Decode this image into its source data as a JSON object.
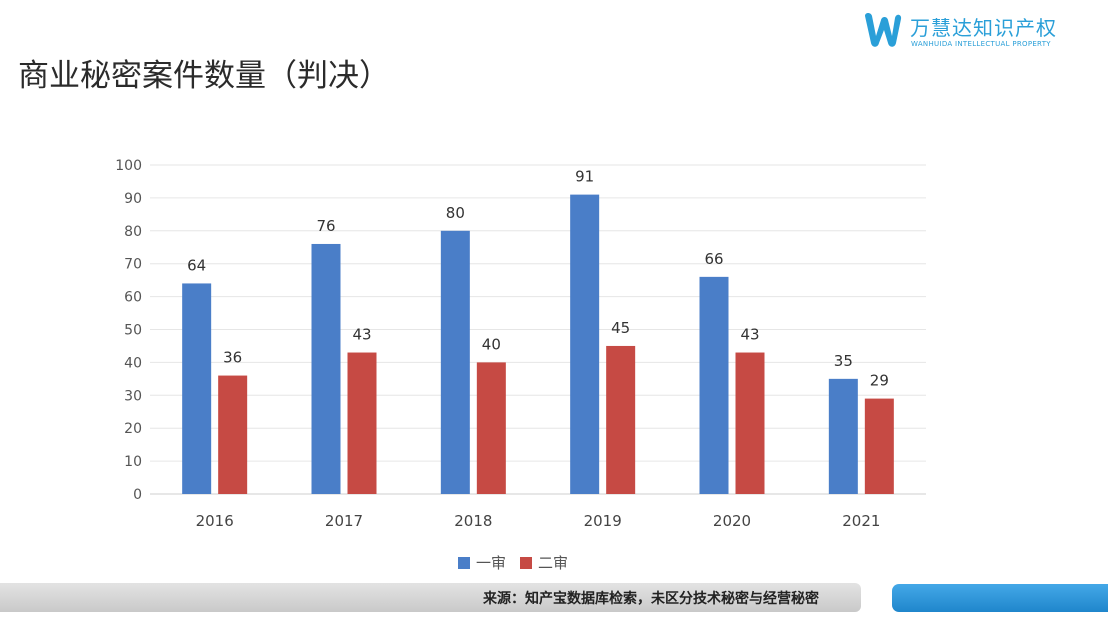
{
  "header": {
    "title": "商业秘密案件数量（判决）",
    "logo": {
      "name_cn": "万慧达知识产权",
      "name_en": "WANHUIDA INTELLECTUAL PROPERTY",
      "icon": "w-logo-icon",
      "color": "#2a9fd8"
    }
  },
  "footer": {
    "source": "来源：知产宝数据库检索，未区分技术秘密与经营秘密"
  },
  "chart_data": {
    "type": "bar",
    "categories": [
      "2016",
      "2017",
      "2018",
      "2019",
      "2020",
      "2021"
    ],
    "series": [
      {
        "name": "一审",
        "color": "#4a7ec8",
        "values": [
          64,
          76,
          80,
          91,
          66,
          35
        ]
      },
      {
        "name": "二审",
        "color": "#c64a44",
        "values": [
          36,
          43,
          40,
          45,
          43,
          29
        ]
      }
    ],
    "ylim": [
      0,
      100
    ],
    "yticks": [
      0,
      10,
      20,
      30,
      40,
      50,
      60,
      70,
      80,
      90,
      100
    ],
    "grid": true,
    "legend": "bottom-center",
    "data_labels": true
  }
}
